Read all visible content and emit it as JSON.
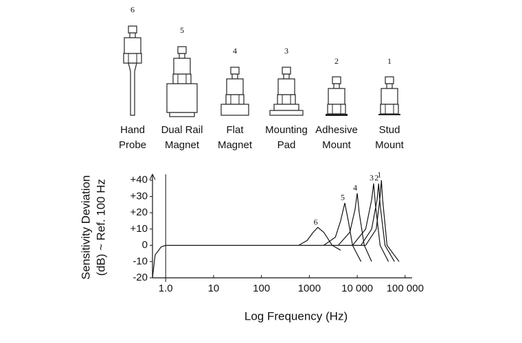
{
  "mounts": [
    {
      "number": "6",
      "label": [
        "Hand",
        "Probe"
      ]
    },
    {
      "number": "5",
      "label": [
        "Dual Rail",
        "Magnet"
      ]
    },
    {
      "number": "4",
      "label": [
        "Flat",
        "Magnet"
      ]
    },
    {
      "number": "3",
      "label": [
        "Mounting",
        "Pad"
      ]
    },
    {
      "number": "2",
      "label": [
        "Adhesive",
        "Mount"
      ]
    },
    {
      "number": "1",
      "label": [
        "Stud",
        "Mount"
      ]
    }
  ],
  "chart_data": {
    "type": "line",
    "xlabel": "Log Frequency (Hz)",
    "ylabel": [
      "Sensitivity Deviation",
      "(dB) ~ Ref. 100 Hz"
    ],
    "xscale": "log",
    "xlim": [
      0.53,
      140000
    ],
    "ylim": [
      -20,
      42
    ],
    "xticks": [
      {
        "value": 1,
        "label": "1.0"
      },
      10,
      100,
      1000,
      {
        "value": 10000,
        "label": "10 000"
      },
      {
        "value": 100000,
        "label": "100 000"
      }
    ],
    "yticks": [
      {
        "value": 40,
        "label": "+40"
      },
      {
        "value": 30,
        "label": "+30"
      },
      {
        "value": 20,
        "label": "+20"
      },
      {
        "value": 10,
        "label": "+10"
      },
      0,
      -10,
      -20
    ],
    "color": "#111",
    "series": [
      {
        "x": [
          0.53,
          0.6,
          0.8,
          1,
          15000
        ],
        "values": [
          -20,
          -6,
          -1,
          0,
          0
        ]
      },
      {
        "name": "6",
        "x": [
          600,
          900,
          1200,
          1500,
          2000,
          3000,
          4500
        ],
        "values": [
          0,
          3,
          8,
          11,
          8,
          0,
          -3
        ]
      },
      {
        "name": "5",
        "x": [
          2000,
          3500,
          4500,
          5500,
          6500,
          8000,
          12000
        ],
        "values": [
          0,
          5,
          15,
          26,
          15,
          0,
          -10
        ]
      },
      {
        "name": "4",
        "x": [
          4000,
          7000,
          9000,
          10000,
          11000,
          14000,
          20000
        ],
        "values": [
          0,
          8,
          22,
          32,
          20,
          0,
          -10
        ]
      },
      {
        "name": "3",
        "x": [
          8000,
          15000,
          20000,
          22000,
          24000,
          30000,
          45000
        ],
        "values": [
          0,
          10,
          28,
          38,
          25,
          0,
          -10
        ]
      },
      {
        "name": "2",
        "x": [
          12000,
          20000,
          26000,
          28000,
          30000,
          38000,
          60000
        ],
        "values": [
          0,
          10,
          28,
          38,
          25,
          0,
          -10
        ]
      },
      {
        "name": "1",
        "x": [
          15000,
          25000,
          30000,
          32000,
          34000,
          42000,
          75000
        ],
        "values": [
          0,
          10,
          30,
          40,
          28,
          0,
          -10
        ]
      }
    ]
  }
}
